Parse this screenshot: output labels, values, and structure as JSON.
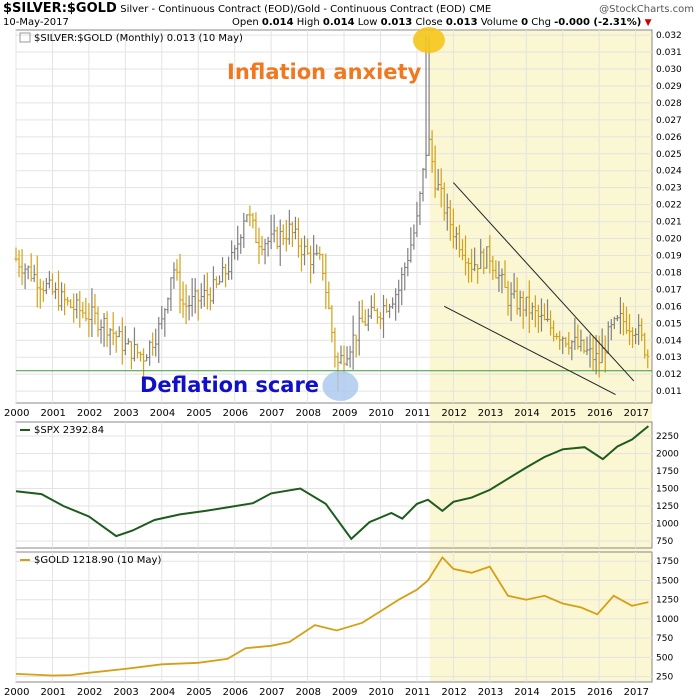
{
  "header": {
    "symbol": "$SILVER:$GOLD",
    "description": "Silver - Continuous Contract (EOD)/Gold - Continuous Contract (EOD)",
    "exchange": "CME",
    "date": "10-May-2017",
    "open_label": "Open",
    "open": "0.014",
    "high_label": "High",
    "high": "0.014",
    "low_label": "Low",
    "low": "0.013",
    "close_label": "Close",
    "close": "0.013",
    "volume_label": "Volume",
    "volume": "0",
    "chg_label": "Chg",
    "chg": "-0.000 (-2.31%)",
    "brand": "@StockCharts.com"
  },
  "annotations": {
    "inflation": "Inflation anxiety",
    "deflation": "Deflation scare"
  },
  "colors": {
    "bar_up": "#808080",
    "bar_down": "#d4a017",
    "spx_line": "#1e5c1e",
    "gold_line": "#d4a017",
    "highlight": "#fbf7d2",
    "inflation_annotation": "#f07820",
    "deflation_annotation": "#1010c8",
    "support_line": "#3c9a3c",
    "top_marker": "#f5c518",
    "bottom_marker": "#a9c7ee"
  },
  "chart_data": [
    {
      "type": "bar",
      "title": "$SILVER:$GOLD (Monthly) 0.013 (10 May)",
      "x_ticks": [
        "2000",
        "2001",
        "2002",
        "2003",
        "2004",
        "2005",
        "2006",
        "2007",
        "2008",
        "2009",
        "2010",
        "2011",
        "2012",
        "2013",
        "2014",
        "2015",
        "2016",
        "2017"
      ],
      "y_ticks": [
        "0.011",
        "0.012",
        "0.013",
        "0.014",
        "0.015",
        "0.016",
        "0.017",
        "0.018",
        "0.019",
        "0.020",
        "0.021",
        "0.022",
        "0.023",
        "0.024",
        "0.025",
        "0.026",
        "0.027",
        "0.028",
        "0.029",
        "0.030",
        "0.031",
        "0.032"
      ],
      "ylim": [
        0.0103,
        0.0323
      ],
      "x": [
        2000.0,
        2000.5,
        2001.0,
        2001.5,
        2002.0,
        2002.5,
        2003.0,
        2003.5,
        2004.0,
        2004.3,
        2004.6,
        2005.0,
        2005.5,
        2006.0,
        2006.3,
        2006.6,
        2007.0,
        2007.5,
        2008.0,
        2008.4,
        2008.8,
        2009.0,
        2009.5,
        2010.0,
        2010.5,
        2011.0,
        2011.3,
        2011.5,
        2011.8,
        2012.0,
        2012.5,
        2013.0,
        2013.5,
        2014.0,
        2014.5,
        2015.0,
        2015.5,
        2016.0,
        2016.3,
        2016.6,
        2017.0,
        2017.35
      ],
      "values": [
        0.0188,
        0.0178,
        0.0168,
        0.016,
        0.0155,
        0.0149,
        0.0136,
        0.0131,
        0.015,
        0.0185,
        0.016,
        0.0164,
        0.0171,
        0.019,
        0.0218,
        0.02,
        0.0198,
        0.0205,
        0.019,
        0.0185,
        0.0125,
        0.0132,
        0.015,
        0.0158,
        0.017,
        0.021,
        0.026,
        0.0235,
        0.0215,
        0.0205,
        0.0185,
        0.019,
        0.0165,
        0.016,
        0.015,
        0.0143,
        0.0135,
        0.0128,
        0.0145,
        0.0152,
        0.0148,
        0.0131
      ],
      "reference_line": 0.0122
    },
    {
      "type": "line",
      "title": "$SPX 2392.84",
      "y_ticks": [
        "750",
        "1000",
        "1250",
        "1500",
        "1750",
        "2000",
        "2250"
      ],
      "ylim": [
        650,
        2450
      ],
      "x": [
        2000.0,
        2000.7,
        2001.3,
        2002.0,
        2002.75,
        2003.2,
        2003.8,
        2004.5,
        2005.2,
        2005.8,
        2006.5,
        2007.0,
        2007.8,
        2008.5,
        2009.2,
        2009.7,
        2010.3,
        2010.6,
        2011.0,
        2011.3,
        2011.7,
        2012.0,
        2012.5,
        2013.0,
        2013.5,
        2014.0,
        2014.5,
        2015.0,
        2015.6,
        2016.1,
        2016.5,
        2016.9,
        2017.35
      ],
      "values": [
        1460,
        1420,
        1250,
        1100,
        820,
        900,
        1050,
        1130,
        1180,
        1230,
        1290,
        1430,
        1500,
        1280,
        780,
        1020,
        1150,
        1070,
        1280,
        1340,
        1180,
        1310,
        1370,
        1480,
        1640,
        1800,
        1950,
        2060,
        2090,
        1920,
        2100,
        2200,
        2392
      ]
    },
    {
      "type": "line",
      "title": "$GOLD 1218.90 (10 May)",
      "y_ticks": [
        "250",
        "500",
        "750",
        "1000",
        "1250",
        "1500",
        "1750"
      ],
      "ylim": [
        180,
        1870
      ],
      "x": [
        2000.0,
        2001.0,
        2001.5,
        2002.0,
        2003.0,
        2004.0,
        2005.0,
        2005.8,
        2006.3,
        2007.0,
        2007.5,
        2008.2,
        2008.8,
        2009.5,
        2010.0,
        2010.5,
        2011.0,
        2011.3,
        2011.7,
        2012.0,
        2012.5,
        2013.0,
        2013.5,
        2014.0,
        2014.5,
        2015.0,
        2015.5,
        2015.95,
        2016.4,
        2016.9,
        2017.35
      ],
      "values": [
        285,
        265,
        270,
        300,
        350,
        410,
        430,
        480,
        620,
        650,
        700,
        920,
        850,
        950,
        1100,
        1250,
        1380,
        1500,
        1800,
        1650,
        1600,
        1680,
        1300,
        1250,
        1300,
        1200,
        1150,
        1060,
        1300,
        1170,
        1219
      ]
    }
  ]
}
